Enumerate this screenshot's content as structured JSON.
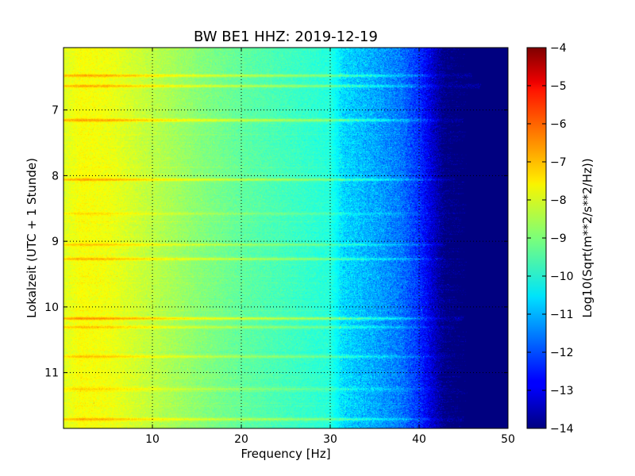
{
  "chart_data": {
    "type": "heatmap",
    "title": "BW BE1 HHZ: 2019-12-19",
    "xlabel": "Frequency [Hz]",
    "ylabel": "Lokalzeit (UTC + 1 Stunde)",
    "xlim": [
      0,
      50
    ],
    "ylim": [
      6.05,
      11.85
    ],
    "y_inverted": true,
    "x_ticks": [
      10,
      20,
      30,
      40,
      50
    ],
    "x_tick_labels": [
      "10",
      "20",
      "30",
      "40",
      "50"
    ],
    "y_ticks": [
      7,
      8,
      9,
      10,
      11
    ],
    "y_tick_labels": [
      "7",
      "8",
      "9",
      "10",
      "11"
    ],
    "grid": true,
    "colormap": "jet",
    "colorbar": {
      "label": "Log10(Sqrt(m**2/s**2/Hz))",
      "range": [
        -14,
        -4
      ],
      "ticks": [
        -4,
        -5,
        -6,
        -7,
        -8,
        -9,
        -10,
        -11,
        -12,
        -13,
        -14
      ],
      "tick_labels": [
        "−4",
        "−5",
        "−6",
        "−7",
        "−8",
        "−9",
        "−10",
        "−11",
        "−12",
        "−13",
        "−14"
      ]
    },
    "spectrum_profile": {
      "frequency_hz": [
        0,
        2,
        5,
        10,
        15,
        20,
        25,
        30,
        31.5,
        35,
        38,
        40,
        42,
        43,
        50
      ],
      "log10_psd": [
        -8.1,
        -7.8,
        -7.9,
        -8.4,
        -8.9,
        -9.3,
        -9.6,
        -9.9,
        -10.6,
        -11.1,
        -11.6,
        -12.3,
        -13.5,
        -14.0,
        -14.0
      ]
    },
    "high_noise_bands": [
      {
        "time": 6.47,
        "delta": 0.9,
        "extent_hz": 46
      },
      {
        "time": 6.63,
        "delta": 0.9,
        "extent_hz": 47
      },
      {
        "time": 7.15,
        "delta": 1.1,
        "extent_hz": 45
      },
      {
        "time": 8.05,
        "delta": 1.0,
        "extent_hz": 44
      },
      {
        "time": 8.57,
        "delta": 0.4,
        "extent_hz": 42
      },
      {
        "time": 9.05,
        "delta": 0.6,
        "extent_hz": 43
      },
      {
        "time": 9.27,
        "delta": 0.8,
        "extent_hz": 43
      },
      {
        "time": 10.17,
        "delta": 1.2,
        "extent_hz": 45
      },
      {
        "time": 10.3,
        "delta": 0.7,
        "extent_hz": 44
      },
      {
        "time": 10.75,
        "delta": 0.7,
        "extent_hz": 44
      },
      {
        "time": 11.25,
        "delta": 0.6,
        "extent_hz": 43
      },
      {
        "time": 11.7,
        "delta": 0.9,
        "extent_hz": 45
      }
    ]
  }
}
